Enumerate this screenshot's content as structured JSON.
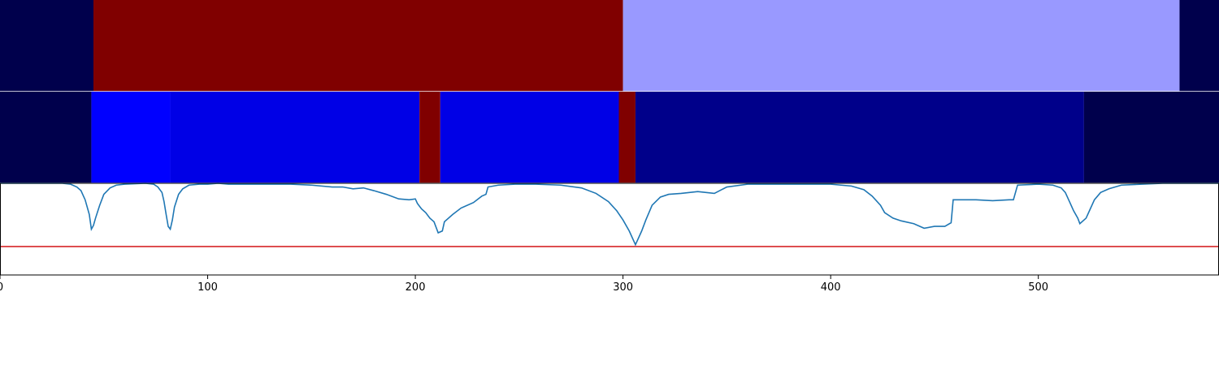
{
  "chart_data": [
    {
      "type": "heatmap",
      "title": "",
      "xlim": [
        0,
        587
      ],
      "segments": [
        {
          "start": 0,
          "end": 45,
          "color": "#00004c"
        },
        {
          "start": 45,
          "end": 300,
          "color": "#800000"
        },
        {
          "start": 300,
          "end": 568,
          "color": "#9999ff"
        },
        {
          "start": 568,
          "end": 587,
          "color": "#00004c"
        }
      ]
    },
    {
      "type": "heatmap",
      "title": "",
      "xlim": [
        0,
        587
      ],
      "segments": [
        {
          "start": 0,
          "end": 44,
          "color": "#00004c"
        },
        {
          "start": 44,
          "end": 82,
          "color": "#0000ff"
        },
        {
          "start": 82,
          "end": 202,
          "color": "#0000e6"
        },
        {
          "start": 202,
          "end": 212,
          "color": "#800000"
        },
        {
          "start": 212,
          "end": 298,
          "color": "#0000e6"
        },
        {
          "start": 298,
          "end": 306,
          "color": "#800000"
        },
        {
          "start": 306,
          "end": 522,
          "color": "#00008a"
        },
        {
          "start": 522,
          "end": 587,
          "color": "#00004c"
        }
      ]
    },
    {
      "type": "line",
      "title": "",
      "xlabel": "",
      "ylabel": "",
      "xlim": [
        0,
        587
      ],
      "ylim": [
        0,
        1
      ],
      "x_ticks": [
        "0",
        "100",
        "200",
        "300",
        "400",
        "500"
      ],
      "grid": false,
      "threshold": 0.31,
      "threshold_color": "#d62728",
      "series_color": "#1f77b4",
      "series": [
        {
          "points": [
            [
              0,
              1.0
            ],
            [
              30,
              1.0
            ],
            [
              34,
              0.99
            ],
            [
              37,
              0.96
            ],
            [
              39,
              0.92
            ],
            [
              41,
              0.82
            ],
            [
              43,
              0.66
            ],
            [
              44,
              0.5
            ],
            [
              45,
              0.54
            ],
            [
              46,
              0.62
            ],
            [
              48,
              0.76
            ],
            [
              50,
              0.88
            ],
            [
              53,
              0.95
            ],
            [
              56,
              0.98
            ],
            [
              60,
              0.99
            ],
            [
              70,
              1.0
            ],
            [
              74,
              0.99
            ],
            [
              76,
              0.96
            ],
            [
              78,
              0.9
            ],
            [
              79,
              0.8
            ],
            [
              80,
              0.66
            ],
            [
              81,
              0.53
            ],
            [
              82,
              0.5
            ],
            [
              83,
              0.6
            ],
            [
              84,
              0.74
            ],
            [
              86,
              0.88
            ],
            [
              88,
              0.94
            ],
            [
              91,
              0.98
            ],
            [
              96,
              0.99
            ],
            [
              100,
              0.99
            ],
            [
              105,
              1.0
            ],
            [
              110,
              0.99
            ],
            [
              120,
              0.99
            ],
            [
              140,
              0.99
            ],
            [
              150,
              0.98
            ],
            [
              160,
              0.96
            ],
            [
              165,
              0.96
            ],
            [
              170,
              0.94
            ],
            [
              175,
              0.95
            ],
            [
              180,
              0.92
            ],
            [
              186,
              0.88
            ],
            [
              192,
              0.83
            ],
            [
              197,
              0.82
            ],
            [
              200,
              0.83
            ],
            [
              201,
              0.78
            ],
            [
              203,
              0.72
            ],
            [
              205,
              0.68
            ],
            [
              207,
              0.62
            ],
            [
              209,
              0.58
            ],
            [
              211,
              0.46
            ],
            [
              213,
              0.48
            ],
            [
              214,
              0.58
            ],
            [
              218,
              0.66
            ],
            [
              222,
              0.73
            ],
            [
              228,
              0.79
            ],
            [
              232,
              0.86
            ],
            [
              234,
              0.88
            ],
            [
              235,
              0.96
            ],
            [
              240,
              0.98
            ],
            [
              248,
              0.99
            ],
            [
              258,
              0.99
            ],
            [
              270,
              0.98
            ],
            [
              280,
              0.95
            ],
            [
              287,
              0.89
            ],
            [
              293,
              0.8
            ],
            [
              297,
              0.7
            ],
            [
              300,
              0.6
            ],
            [
              303,
              0.48
            ],
            [
              306,
              0.33
            ],
            [
              307,
              0.38
            ],
            [
              309,
              0.48
            ],
            [
              311,
              0.6
            ],
            [
              314,
              0.76
            ],
            [
              318,
              0.85
            ],
            [
              322,
              0.88
            ],
            [
              328,
              0.89
            ],
            [
              332,
              0.9
            ],
            [
              336,
              0.91
            ],
            [
              340,
              0.9
            ],
            [
              344,
              0.89
            ],
            [
              350,
              0.96
            ],
            [
              360,
              0.99
            ],
            [
              380,
              0.99
            ],
            [
              400,
              0.99
            ],
            [
              410,
              0.97
            ],
            [
              416,
              0.93
            ],
            [
              420,
              0.86
            ],
            [
              424,
              0.76
            ],
            [
              426,
              0.68
            ],
            [
              430,
              0.62
            ],
            [
              434,
              0.59
            ],
            [
              440,
              0.56
            ],
            [
              445,
              0.51
            ],
            [
              450,
              0.53
            ],
            [
              455,
              0.53
            ],
            [
              458,
              0.57
            ],
            [
              459,
              0.82
            ],
            [
              465,
              0.82
            ],
            [
              470,
              0.82
            ],
            [
              478,
              0.81
            ],
            [
              486,
              0.82
            ],
            [
              488,
              0.82
            ],
            [
              490,
              0.98
            ],
            [
              500,
              0.99
            ],
            [
              507,
              0.98
            ],
            [
              511,
              0.95
            ],
            [
              513,
              0.9
            ],
            [
              515,
              0.8
            ],
            [
              517,
              0.7
            ],
            [
              519,
              0.62
            ],
            [
              520,
              0.56
            ],
            [
              523,
              0.62
            ],
            [
              525,
              0.72
            ],
            [
              527,
              0.82
            ],
            [
              530,
              0.9
            ],
            [
              534,
              0.94
            ],
            [
              540,
              0.98
            ],
            [
              550,
              0.99
            ],
            [
              560,
              1.0
            ],
            [
              587,
              1.0
            ]
          ]
        }
      ]
    }
  ]
}
